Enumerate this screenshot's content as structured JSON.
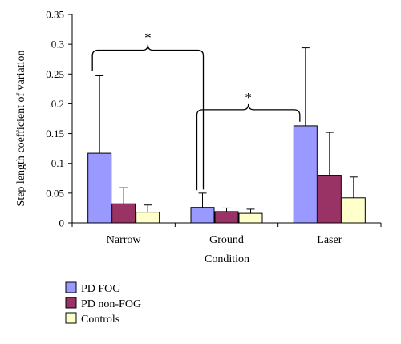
{
  "chart_data": {
    "type": "bar",
    "categories": [
      "Narrow",
      "Ground",
      "Laser"
    ],
    "series": [
      {
        "name": "PD FOG",
        "color": "#9999ff",
        "values": [
          0.117,
          0.026,
          0.163
        ],
        "error": [
          0.13,
          0.024,
          0.131
        ]
      },
      {
        "name": "PD non-FOG",
        "color": "#993366",
        "values": [
          0.032,
          0.019,
          0.08
        ],
        "error": [
          0.027,
          0.006,
          0.072
        ]
      },
      {
        "name": "Controls",
        "color": "#ffffcc",
        "values": [
          0.018,
          0.016,
          0.042
        ],
        "error": [
          0.012,
          0.007,
          0.035
        ]
      }
    ],
    "xlabel": "Condition",
    "ylabel": "Step length coefficient of variation",
    "ylim": [
      0,
      0.35
    ],
    "yticks": [
      "0",
      "0.05",
      "0.1",
      "0.15",
      "0.2",
      "0.25",
      "0.3",
      "0.35"
    ],
    "grid": false,
    "legend_position": "bottom-left",
    "annotations": [
      {
        "text": "*",
        "between": [
          "Narrow",
          "Ground"
        ]
      },
      {
        "text": "*",
        "between": [
          "Ground",
          "Laser"
        ]
      }
    ]
  }
}
